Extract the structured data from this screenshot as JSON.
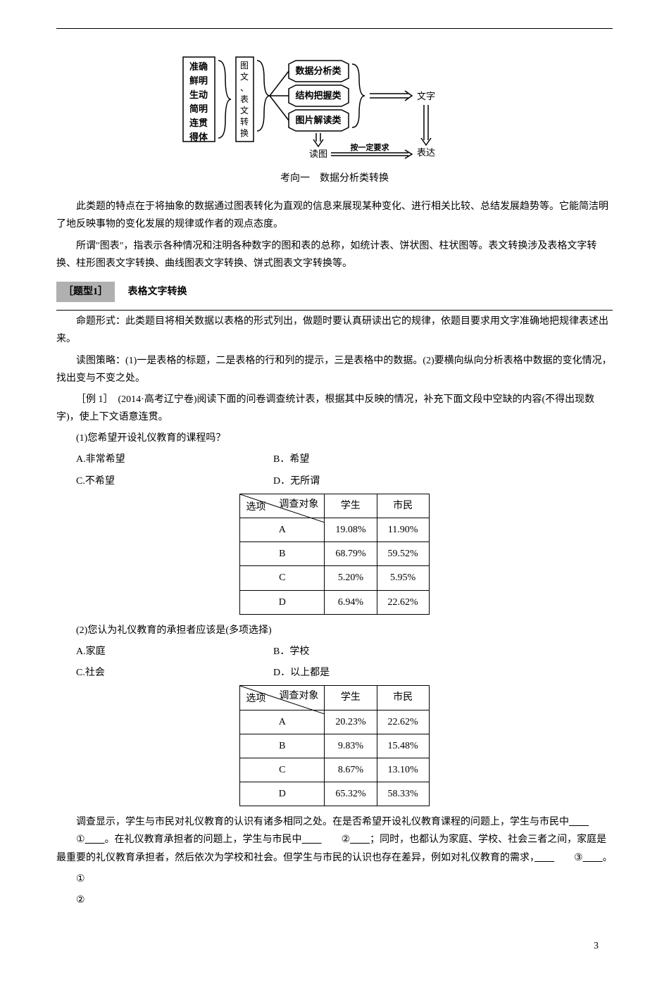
{
  "diagram": {
    "left_box": [
      "准确",
      "鲜明",
      "生动",
      "简明",
      "连贯",
      "得体"
    ],
    "mid_box": [
      "图",
      "文",
      "、",
      "表",
      "文",
      "转",
      "换"
    ],
    "cat1": "数据分析类",
    "cat2": "结构把握类",
    "cat3": "图片解读类",
    "right_label1": "文字",
    "right_label2": "表达",
    "bottom_label": "读图",
    "arrow_label": "按一定要求",
    "caption": "考向一　数据分析类转换"
  },
  "para1": "此类题的特点在于将抽象的数据通过图表转化为直观的信息来展现某种变化、进行相关比较、总结发展趋势等。它能简洁明了地反映事物的变化发展的规律或作者的观点态度。",
  "para2": "所谓\"图表\"，指表示各种情况和注明各种数字的图和表的总称，如统计表、饼状图、柱状图等。表文转换涉及表格文字转换、柱形图表文字转换、曲线图表文字转换、饼式图表文字转换等。",
  "section": {
    "tag": "［题型1］",
    "title": "表格文字转换"
  },
  "para3": "命题形式：此类题目将相关数据以表格的形式列出，做题时要认真研读出它的规律，依题目要求用文字准确地把规律表述出来。",
  "para4": "读图策略：(1)一是表格的标题，二是表格的行和列的提示，三是表格中的数据。(2)要横向纵向分析表格中数据的变化情况，找出变与不变之处。",
  "example": "［例 1］　(2014·高考辽宁卷)阅读下面的问卷调查统计表，根据其中反映的情况，补充下面文段中空缺的内容(不得出现数字)，使上下文语意连贯。",
  "q1": {
    "text": "(1)您希望开设礼仪教育的课程吗？",
    "optA": "A.非常希望",
    "optB": "B．希望",
    "optC": "C.不希望",
    "optD": "D．无所谓"
  },
  "table_header": {
    "top": "调查对象",
    "bottom": "选项",
    "col1": "学生",
    "col2": "市民"
  },
  "table1": {
    "rows": [
      {
        "opt": "A",
        "v1": "19.08%",
        "v2": "11.90%"
      },
      {
        "opt": "B",
        "v1": "68.79%",
        "v2": "59.52%"
      },
      {
        "opt": "C",
        "v1": "5.20%",
        "v2": "5.95%"
      },
      {
        "opt": "D",
        "v1": "6.94%",
        "v2": "22.62%"
      }
    ]
  },
  "q2": {
    "text": "(2)您认为礼仪教育的承担者应该是(多项选择)",
    "optA": "A.家庭",
    "optB": "B．学校",
    "optC": "C.社会",
    "optD": "D．以上都是"
  },
  "table2": {
    "rows": [
      {
        "opt": "A",
        "v1": "20.23%",
        "v2": "22.62%"
      },
      {
        "opt": "B",
        "v1": "9.83%",
        "v2": "15.48%"
      },
      {
        "opt": "C",
        "v1": "8.67%",
        "v2": "13.10%"
      },
      {
        "opt": "D",
        "v1": "65.32%",
        "v2": "58.33%"
      }
    ]
  },
  "conclusion": {
    "part1": "调查显示，学生与市民对礼仪教育的认识有诸多相同之处。在是否希望开设礼仪教育课程的问题上，学生与市民中",
    "blank1": "①",
    "part2": "。在礼仪教育承担者的问题上，学生与市民中",
    "blank2": "②",
    "part3": "；同时，也都认为家庭、学校、社会三者之间，家庭是最重要的礼仪教育承担者，然后依次为学校和社会。但学生与市民的认识也存在差异，例如对礼仪教育的需求，",
    "blank3": "③",
    "part4": "。"
  },
  "answers": {
    "a1": "①",
    "a2": "②"
  },
  "page_num": "3"
}
